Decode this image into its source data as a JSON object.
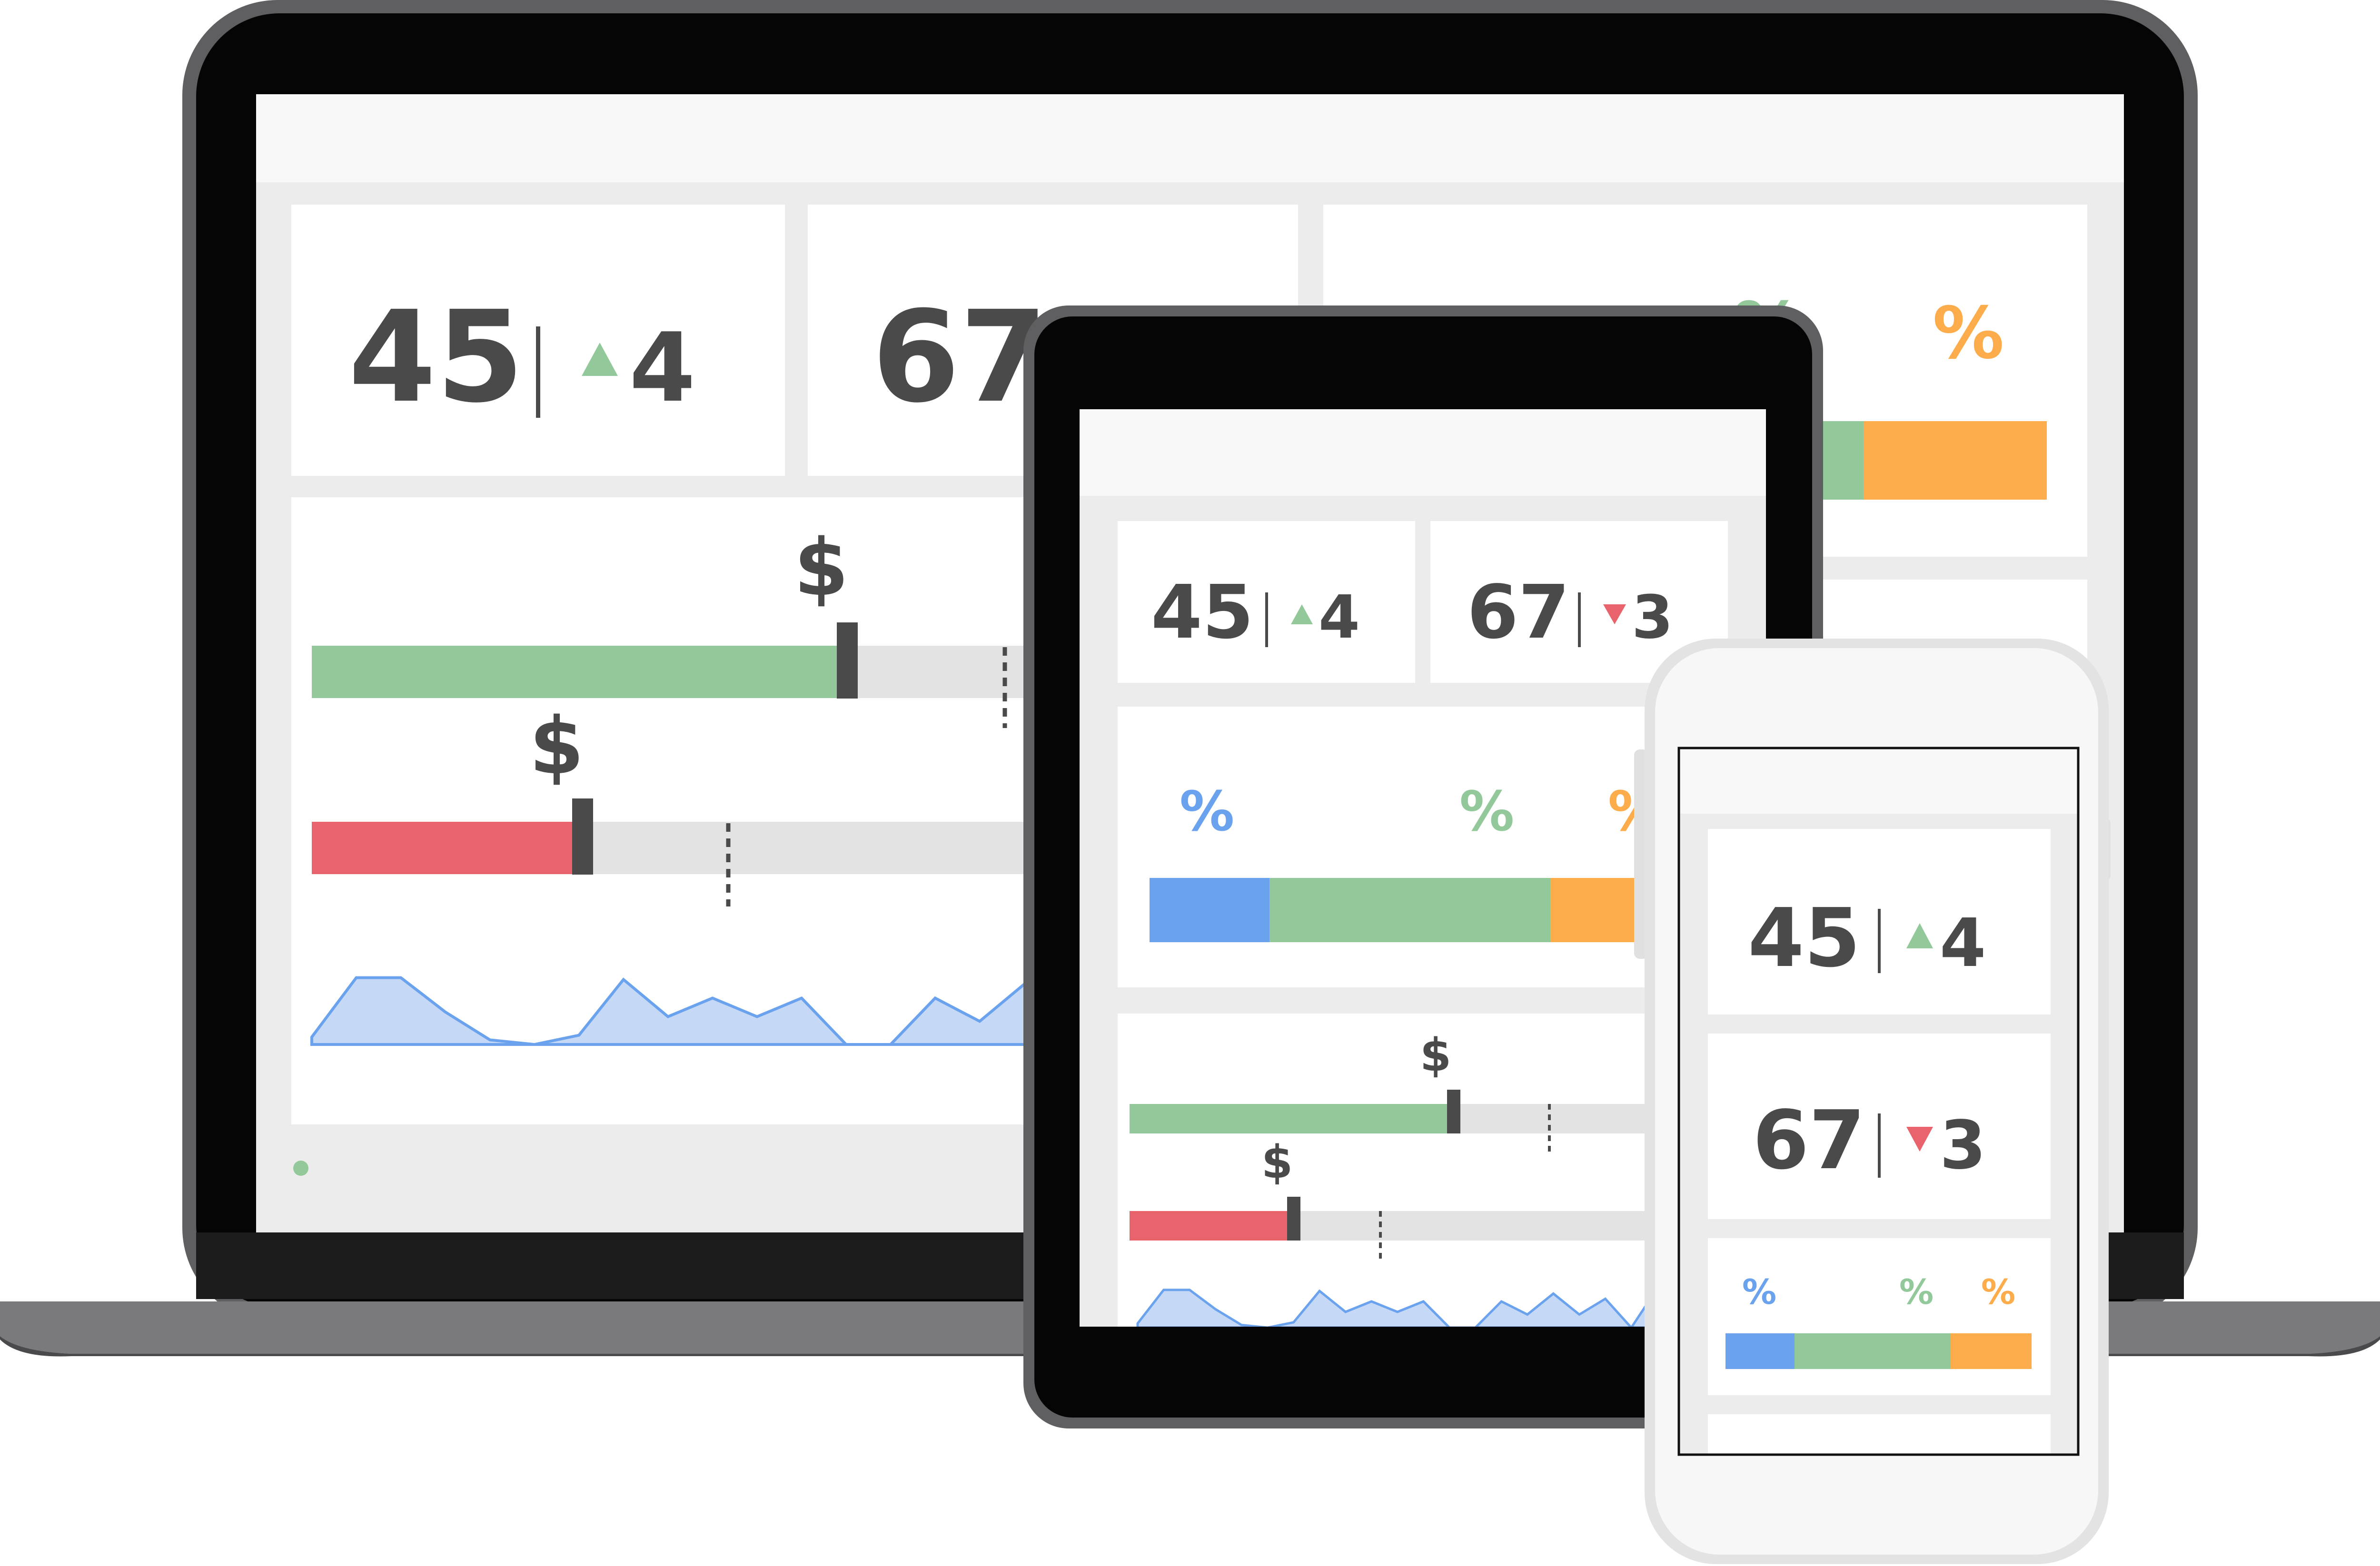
{
  "colors": {
    "green": "#93c99a",
    "red": "#e8636b",
    "blue": "#6aa2ee",
    "orange": "#fcac4a",
    "text": "#4a4a4a",
    "track": "#e3e3e3",
    "panel_bg": "#ececec",
    "area_fill": "#c5d9f6",
    "area_line": "#6aa2ee"
  },
  "kpi": {
    "first": {
      "value": "45",
      "delta": "4",
      "direction": "up"
    },
    "second": {
      "value": "67",
      "delta": "3",
      "direction": "down"
    }
  },
  "symbols": {
    "currency": "$",
    "percent": "%"
  },
  "bullet_bars": [
    {
      "fill": 0.58,
      "target": 0.76,
      "status": "green"
    },
    {
      "fill": 0.3,
      "target": 0.45,
      "status": "red"
    }
  ],
  "stacked_bar": [
    {
      "share": 0.18,
      "color": "blue"
    },
    {
      "share": 0.47,
      "color": "green"
    },
    {
      "share": 0.35,
      "color": "orange"
    }
  ],
  "sparkline": [
    0.08,
    0.72,
    0.72,
    0.35,
    0.05,
    0.0,
    0.1,
    0.7,
    0.3,
    0.5,
    0.3,
    0.5,
    0.0,
    0.0,
    0.5,
    0.25,
    0.65,
    0.25,
    0.55,
    0.0,
    0.75,
    0.3,
    0.55,
    0.6,
    0.2
  ]
}
